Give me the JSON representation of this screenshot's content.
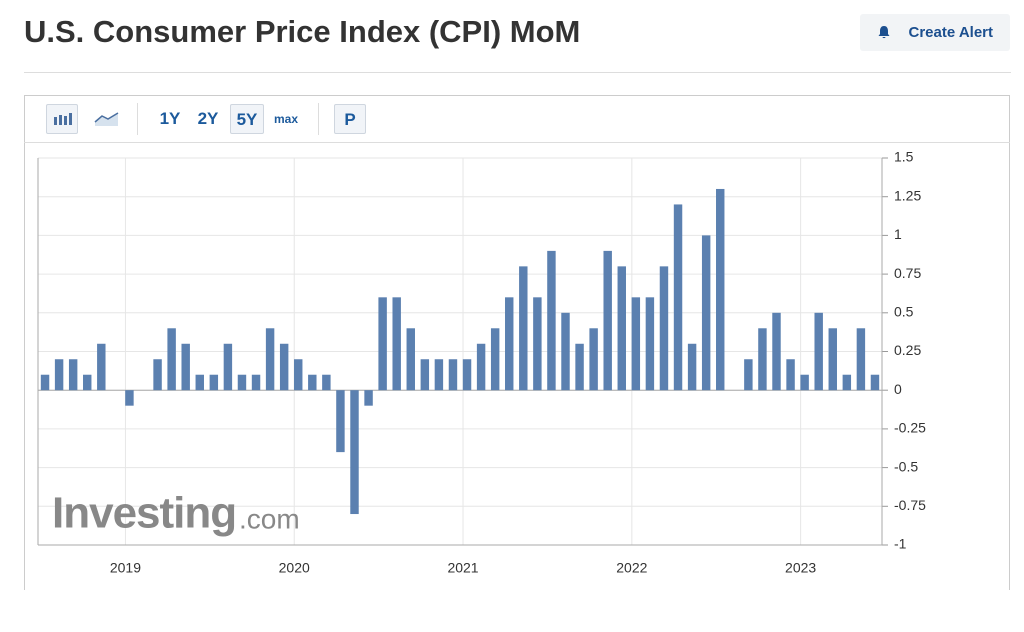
{
  "header": {
    "title": "U.S. Consumer Price Index (CPI) MoM",
    "button": "Create Alert"
  },
  "toolbar": {
    "ranges": [
      "1Y",
      "2Y",
      "5Y",
      "max"
    ],
    "p": "P"
  },
  "watermark": {
    "brand": "Investing",
    "suffix": ".com"
  },
  "chart_data": {
    "type": "bar",
    "color": "#5b80b0",
    "grid": true,
    "categories": [
      null,
      null,
      null,
      null,
      null,
      null,
      "2019",
      null,
      null,
      null,
      null,
      null,
      null,
      null,
      null,
      null,
      null,
      null,
      "2020",
      null,
      null,
      null,
      null,
      null,
      null,
      null,
      null,
      null,
      null,
      null,
      "2021",
      null,
      null,
      null,
      null,
      null,
      null,
      null,
      null,
      null,
      null,
      null,
      "2022",
      null,
      null,
      null,
      null,
      null,
      null,
      null,
      null,
      null,
      null,
      null,
      "2023",
      null,
      null,
      null,
      null,
      null
    ],
    "values": [
      0.1,
      0.2,
      0.2,
      0.1,
      0.3,
      0.0,
      -0.1,
      0.0,
      0.2,
      0.4,
      0.3,
      0.1,
      0.1,
      0.3,
      0.1,
      0.1,
      0.4,
      0.3,
      0.2,
      0.1,
      0.1,
      -0.4,
      -0.8,
      -0.1,
      0.6,
      0.6,
      0.4,
      0.2,
      0.2,
      0.2,
      0.2,
      0.3,
      0.4,
      0.6,
      0.8,
      0.6,
      0.9,
      0.5,
      0.3,
      0.4,
      0.9,
      0.8,
      0.6,
      0.6,
      0.8,
      1.2,
      0.3,
      1.0,
      1.3,
      0.0,
      0.2,
      0.4,
      0.5,
      0.2,
      0.1,
      0.5,
      0.4,
      0.1,
      0.4,
      0.1
    ],
    "ylim": [
      -1,
      1.5
    ],
    "yticks": [
      1.5,
      1.25,
      1,
      0.75,
      0.5,
      0.25,
      0,
      -0.25,
      -0.5,
      -0.75,
      -1
    ]
  }
}
